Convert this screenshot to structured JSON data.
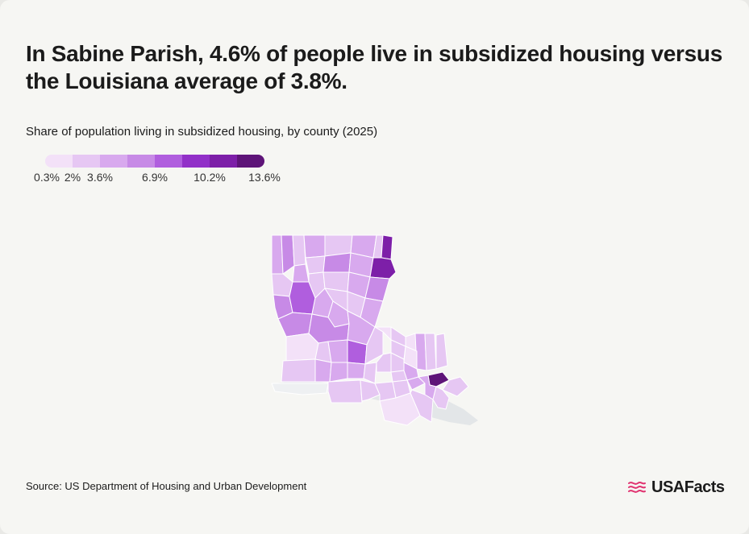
{
  "title": "In Sabine Parish, 4.6% of people live in subsidized housing versus the Louisiana average of 3.8%.",
  "subtitle": "Share of population living in subsidized housing, by county (2025)",
  "legend": {
    "colors": [
      "#f3e1f8",
      "#e6c7f3",
      "#d8a9ee",
      "#c78ae6",
      "#b05ede",
      "#9230c8",
      "#7d1fa8",
      "#5e1478"
    ],
    "ticks": [
      {
        "label": "0.3%",
        "pos": 0
      },
      {
        "label": "2%",
        "pos": 1
      },
      {
        "label": "3.6%",
        "pos": 2
      },
      {
        "label": "6.9%",
        "pos": 4
      },
      {
        "label": "10.2%",
        "pos": 6
      },
      {
        "label": "13.6%",
        "pos": 8
      }
    ]
  },
  "map": {
    "water_color": "#e3e6e8",
    "border_color": "#ffffff"
  },
  "source": "Source: US Department of Housing and Urban Development",
  "logo": {
    "text": "USAFacts",
    "icon": "usafacts-flag-icon",
    "color": "#e0326f"
  }
}
